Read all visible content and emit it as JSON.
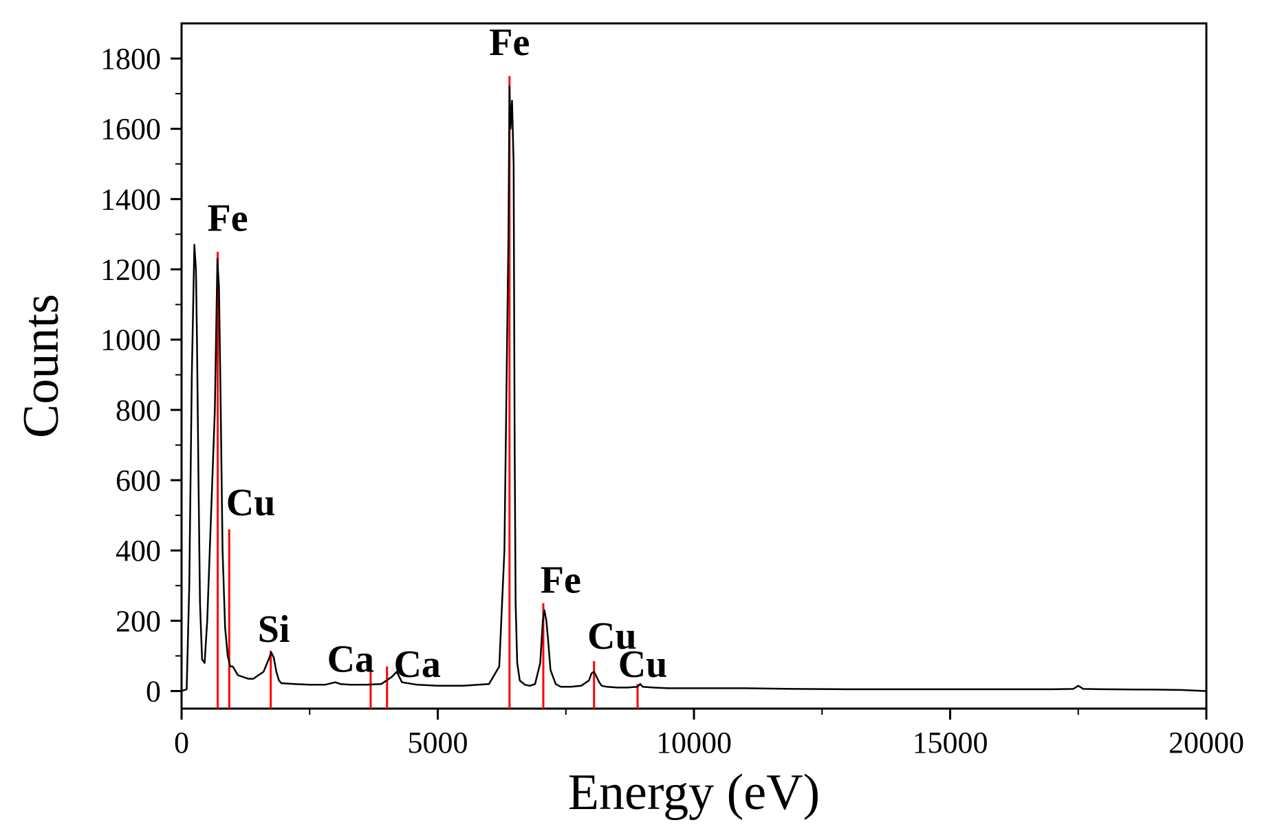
{
  "chart_data": {
    "type": "line",
    "title": "",
    "xlabel": "Energy (eV)",
    "ylabel": "Counts",
    "xlim": [
      0,
      20000
    ],
    "ylim": [
      -50,
      1900
    ],
    "x_ticks": [
      0,
      5000,
      10000,
      15000,
      20000
    ],
    "y_ticks": [
      0,
      200,
      400,
      600,
      800,
      1000,
      1200,
      1400,
      1600,
      1800
    ],
    "grid": false,
    "legend": "none",
    "colors": {
      "spectrum": "#000000",
      "markers": "#ff0000"
    },
    "series": [
      {
        "x": [
          0,
          100,
          150,
          200,
          250,
          280,
          300,
          330,
          360,
          400,
          450,
          500,
          550,
          600,
          650,
          700,
          730,
          760,
          800,
          850,
          900,
          950,
          1000,
          1100,
          1200,
          1300,
          1400,
          1500,
          1600,
          1700,
          1750,
          1800,
          1850,
          1900,
          1950,
          2000,
          2200,
          2500,
          2800,
          3000,
          3100,
          3300,
          3600,
          3900,
          4100,
          4200,
          4300,
          4600,
          5000,
          5500,
          6000,
          6200,
          6300,
          6380,
          6400,
          6420,
          6450,
          6480,
          6500,
          6520,
          6550,
          6600,
          6700,
          6800,
          6900,
          7000,
          7050,
          7080,
          7120,
          7150,
          7200,
          7300,
          7400,
          7600,
          7800,
          7950,
          8000,
          8050,
          8100,
          8150,
          8200,
          8300,
          8500,
          8700,
          8900,
          8950,
          9000,
          9200,
          9500,
          10000,
          11000,
          12000,
          13000,
          14000,
          15000,
          16000,
          17000,
          17400,
          17500,
          17600,
          18000,
          19000,
          19500,
          20000
        ],
        "y": [
          0,
          5,
          300,
          900,
          1270,
          1200,
          1000,
          600,
          250,
          90,
          80,
          200,
          400,
          600,
          800,
          1230,
          1150,
          850,
          400,
          180,
          100,
          70,
          70,
          45,
          40,
          35,
          35,
          45,
          55,
          90,
          110,
          95,
          55,
          30,
          22,
          22,
          20,
          18,
          18,
          25,
          20,
          18,
          18,
          20,
          40,
          55,
          25,
          18,
          15,
          15,
          20,
          70,
          400,
          1300,
          1720,
          1600,
          1680,
          1500,
          700,
          250,
          80,
          30,
          18,
          15,
          20,
          80,
          200,
          230,
          200,
          150,
          60,
          20,
          12,
          12,
          15,
          30,
          50,
          55,
          40,
          25,
          15,
          12,
          10,
          10,
          12,
          20,
          12,
          10,
          8,
          8,
          8,
          6,
          5,
          5,
          5,
          5,
          5,
          6,
          15,
          6,
          5,
          4,
          3,
          0
        ]
      }
    ],
    "markers": [
      {
        "element": "Fe",
        "x": 705,
        "height": 1250
      },
      {
        "element": "Cu",
        "x": 930,
        "height": 460
      },
      {
        "element": "Si",
        "x": 1740,
        "height": 115
      },
      {
        "element": "Ca",
        "x": 3690,
        "height": 90
      },
      {
        "element": "Ca",
        "x": 4010,
        "height": 70
      },
      {
        "element": "Fe",
        "x": 6400,
        "height": 1750
      },
      {
        "element": "Fe",
        "x": 7060,
        "height": 250
      },
      {
        "element": "Cu",
        "x": 8050,
        "height": 85
      },
      {
        "element": "Cu",
        "x": 8900,
        "height": 20
      }
    ],
    "annotations": [
      {
        "text": "Fe",
        "x": 900,
        "y": 1310
      },
      {
        "text": "Cu",
        "x": 1350,
        "y": 500
      },
      {
        "text": "Si",
        "x": 1800,
        "y": 140
      },
      {
        "text": "Ca",
        "x": 3300,
        "y": 55
      },
      {
        "text": "Ca",
        "x": 4600,
        "y": 40
      },
      {
        "text": "Fe",
        "x": 6400,
        "y": 1810
      },
      {
        "text": "Fe",
        "x": 7400,
        "y": 280
      },
      {
        "text": "Cu",
        "x": 8400,
        "y": 120
      },
      {
        "text": "Cu",
        "x": 9000,
        "y": 40
      }
    ]
  }
}
